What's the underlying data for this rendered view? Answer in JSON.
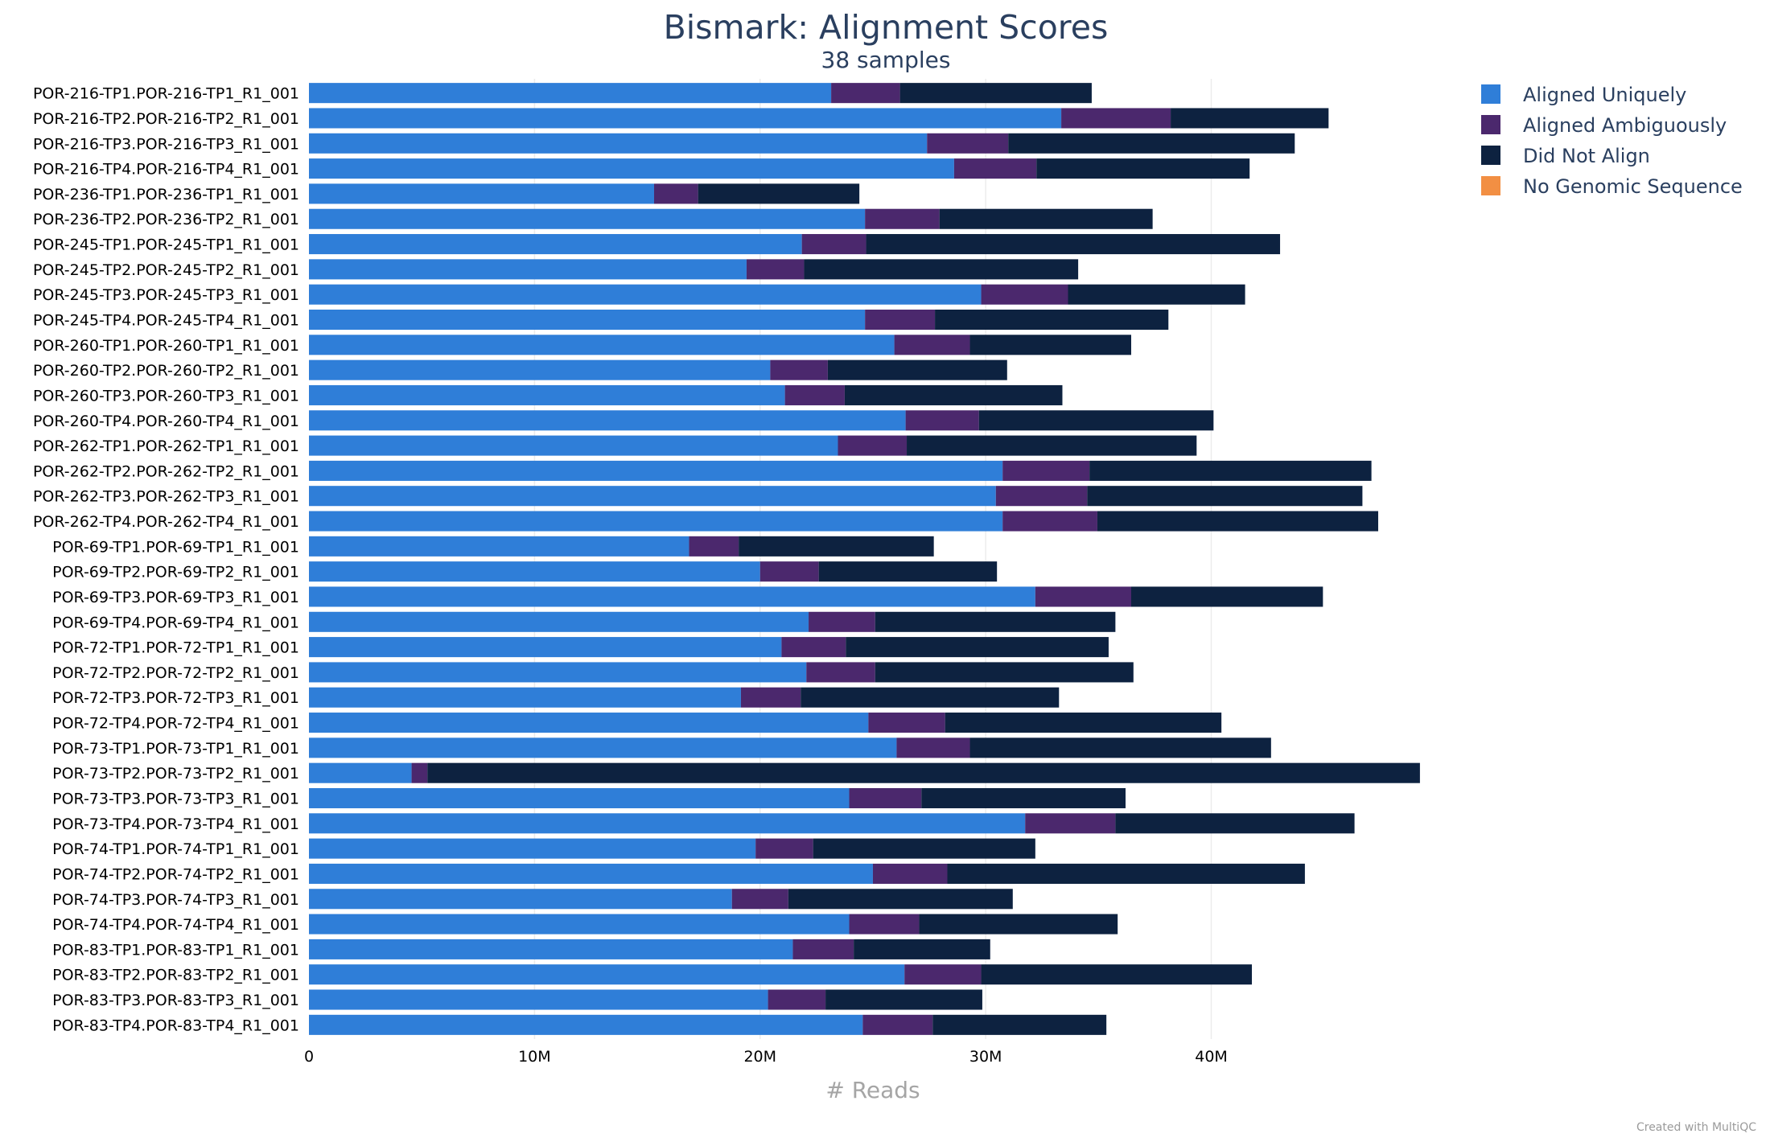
{
  "chart_data": {
    "type": "bar",
    "orientation": "horizontal",
    "stacked": true,
    "title": "Bismark: Alignment Scores",
    "subtitle": "38 samples",
    "xlabel": "# Reads",
    "xlim": [
      0,
      52000000
    ],
    "xticks": [
      0,
      10000000,
      20000000,
      30000000,
      40000000
    ],
    "xtick_labels": [
      "0",
      "10M",
      "20M",
      "30M",
      "40M"
    ],
    "grid": true,
    "legend_position": "top-right",
    "credit": "Created with MultiQC",
    "categories": [
      "POR-216-TP1.POR-216-TP1_R1_001",
      "POR-216-TP2.POR-216-TP2_R1_001",
      "POR-216-TP3.POR-216-TP3_R1_001",
      "POR-216-TP4.POR-216-TP4_R1_001",
      "POR-236-TP1.POR-236-TP1_R1_001",
      "POR-236-TP2.POR-236-TP2_R1_001",
      "POR-245-TP1.POR-245-TP1_R1_001",
      "POR-245-TP2.POR-245-TP2_R1_001",
      "POR-245-TP3.POR-245-TP3_R1_001",
      "POR-245-TP4.POR-245-TP4_R1_001",
      "POR-260-TP1.POR-260-TP1_R1_001",
      "POR-260-TP2.POR-260-TP2_R1_001",
      "POR-260-TP3.POR-260-TP3_R1_001",
      "POR-260-TP4.POR-260-TP4_R1_001",
      "POR-262-TP1.POR-262-TP1_R1_001",
      "POR-262-TP2.POR-262-TP2_R1_001",
      "POR-262-TP3.POR-262-TP3_R1_001",
      "POR-262-TP4.POR-262-TP4_R1_001",
      "POR-69-TP1.POR-69-TP1_R1_001",
      "POR-69-TP2.POR-69-TP2_R1_001",
      "POR-69-TP3.POR-69-TP3_R1_001",
      "POR-69-TP4.POR-69-TP4_R1_001",
      "POR-72-TP1.POR-72-TP1_R1_001",
      "POR-72-TP2.POR-72-TP2_R1_001",
      "POR-72-TP3.POR-72-TP3_R1_001",
      "POR-72-TP4.POR-72-TP4_R1_001",
      "POR-73-TP1.POR-73-TP1_R1_001",
      "POR-73-TP2.POR-73-TP2_R1_001",
      "POR-73-TP3.POR-73-TP3_R1_001",
      "POR-73-TP4.POR-73-TP4_R1_001",
      "POR-74-TP1.POR-74-TP1_R1_001",
      "POR-74-TP2.POR-74-TP2_R1_001",
      "POR-74-TP3.POR-74-TP3_R1_001",
      "POR-74-TP4.POR-74-TP4_R1_001",
      "POR-83-TP1.POR-83-TP1_R1_001",
      "POR-83-TP2.POR-83-TP2_R1_001",
      "POR-83-TP3.POR-83-TP3_R1_001",
      "POR-83-TP4.POR-83-TP4_R1_001"
    ],
    "series": [
      {
        "name": "Aligned Uniquely",
        "color": "#2f7ed8",
        "values": [
          23150000,
          33350000,
          27400000,
          28600000,
          15300000,
          24650000,
          21850000,
          19400000,
          29800000,
          24650000,
          25950000,
          20450000,
          21100000,
          26450000,
          23450000,
          30750000,
          30450000,
          30750000,
          16850000,
          20000000,
          32200000,
          22150000,
          20950000,
          22050000,
          19150000,
          24800000,
          26050000,
          4550000,
          23950000,
          31750000,
          19800000,
          25000000,
          18750000,
          23950000,
          21450000,
          26400000,
          20350000,
          24550000
        ]
      },
      {
        "name": "Aligned Ambiguously",
        "color": "#4b286d",
        "values": [
          3050000,
          4850000,
          3600000,
          3650000,
          1950000,
          3300000,
          2850000,
          2550000,
          3850000,
          3100000,
          3350000,
          2550000,
          2650000,
          3250000,
          3050000,
          3850000,
          4050000,
          4200000,
          2200000,
          2600000,
          4250000,
          2950000,
          2850000,
          3050000,
          2650000,
          3400000,
          3250000,
          700000,
          3200000,
          4000000,
          2550000,
          3300000,
          2500000,
          3100000,
          2700000,
          3400000,
          2550000,
          3100000
        ]
      },
      {
        "name": "Did Not Align",
        "color": "#0d2240",
        "values": [
          8500000,
          7000000,
          12700000,
          9450000,
          7150000,
          9450000,
          18350000,
          12150000,
          7850000,
          10350000,
          7150000,
          7950000,
          9650000,
          10400000,
          12850000,
          12500000,
          12200000,
          12450000,
          8650000,
          7900000,
          8500000,
          10650000,
          11650000,
          11450000,
          11450000,
          12250000,
          13350000,
          44000000,
          9050000,
          10600000,
          9850000,
          15850000,
          9950000,
          8800000,
          6050000,
          12000000,
          6950000,
          7700000
        ]
      },
      {
        "name": "No Genomic Sequence",
        "color": "#f28f43",
        "values": [
          0,
          0,
          0,
          0,
          0,
          0,
          0,
          0,
          0,
          0,
          0,
          0,
          0,
          0,
          0,
          0,
          0,
          0,
          0,
          0,
          0,
          0,
          0,
          0,
          0,
          0,
          0,
          0,
          0,
          0,
          0,
          0,
          0,
          0,
          0,
          0,
          0,
          0
        ]
      }
    ]
  }
}
